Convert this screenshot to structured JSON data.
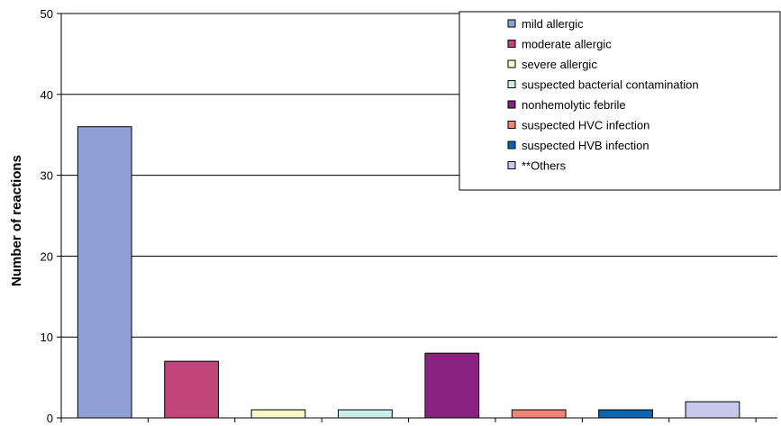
{
  "chart_data": {
    "type": "bar",
    "ylabel": "Number of reactions",
    "xlabel": "",
    "ylim": [
      0,
      50
    ],
    "yticks": [
      0,
      10,
      20,
      30,
      40,
      50
    ],
    "grid": true,
    "legend_position": "top-right",
    "series": [
      {
        "name": "mild allergic",
        "value": 36,
        "color": "#8fa0d6"
      },
      {
        "name": "moderate allergic",
        "value": 7,
        "color": "#c0457a"
      },
      {
        "name": "severe allergic",
        "value": 1,
        "color": "#fcf7c6"
      },
      {
        "name": "suspected bacterial contamination",
        "value": 1,
        "color": "#c9eeeb"
      },
      {
        "name": "nonhemolytic febrile",
        "value": 8,
        "color": "#8a2282"
      },
      {
        "name": "suspected HVC infection",
        "value": 1,
        "color": "#f08575"
      },
      {
        "name": "suspected HVB infection",
        "value": 1,
        "color": "#0b65b0"
      },
      {
        "name": "**Others",
        "value": 2,
        "color": "#c6c9ec"
      }
    ]
  }
}
